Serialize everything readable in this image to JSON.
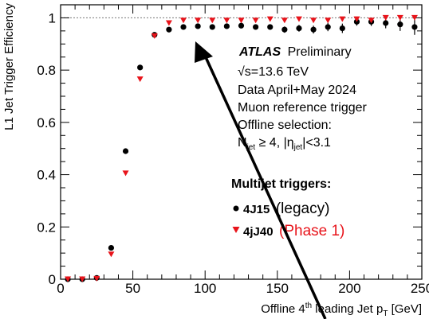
{
  "chart_data": {
    "type": "scatter",
    "xlabel": "Offline 4th leading Jet p_T [GeV]",
    "xlabel_parts": {
      "pre": "Offline 4",
      "sup": "th",
      "mid": " leading Jet p",
      "sub": "T",
      "post": " [GeV]"
    },
    "ylabel": "L1 Jet Trigger Efficiency",
    "xlim": [
      0,
      250
    ],
    "ylim": [
      0,
      1.05
    ],
    "xticks": [
      0,
      50,
      100,
      150,
      200,
      250
    ],
    "xtick_labels": [
      "0",
      "50",
      "100",
      "150",
      "200",
      "250"
    ],
    "yticks": [
      0,
      0.2,
      0.4,
      0.6,
      0.8,
      1
    ],
    "ytick_labels": [
      "0",
      "0.2",
      "0.4",
      "0.6",
      "0.8",
      "1"
    ],
    "reference_line": 1,
    "annotations": {
      "atlas": "ATLAS",
      "preliminary": "Preliminary",
      "energy": "√s=13.6 TeV",
      "data": "Data April+May 2024",
      "reference": "Muon reference trigger",
      "selection": "Offline selection:",
      "cut_n": "N",
      "cut_n_sub": "jet",
      "cut_rest": " ≥ 4, |η",
      "cut_eta_sub": "jet",
      "cut_end": "|<3.1"
    },
    "legend": {
      "title": "Multijet triggers:",
      "placement": "center-right"
    },
    "series": [
      {
        "name": "4J15",
        "note": "(legacy)",
        "color": "#000000",
        "marker": "circle",
        "x": [
          5,
          15,
          25,
          35,
          45,
          55,
          65,
          75,
          85,
          95,
          105,
          115,
          125,
          135,
          145,
          155,
          165,
          175,
          185,
          195,
          205,
          215,
          225,
          235,
          245
        ],
        "y": [
          0.0,
          0.0,
          0.005,
          0.12,
          0.49,
          0.81,
          0.935,
          0.955,
          0.965,
          0.968,
          0.965,
          0.968,
          0.97,
          0.965,
          0.965,
          0.955,
          0.96,
          0.955,
          0.965,
          0.96,
          0.985,
          0.985,
          0.98,
          0.975,
          0.965
        ],
        "yerr": [
          0,
          0,
          0.002,
          0.01,
          0.01,
          0.008,
          0.005,
          0.005,
          0.005,
          0.005,
          0.006,
          0.007,
          0.008,
          0.009,
          0.01,
          0.012,
          0.013,
          0.015,
          0.016,
          0.018,
          0.015,
          0.016,
          0.02,
          0.025,
          0.03
        ]
      },
      {
        "name": "4jJ40",
        "note": "(Phase 1)",
        "color": "#e8141b",
        "marker": "triangle-down",
        "x": [
          5,
          15,
          25,
          35,
          45,
          55,
          65,
          75,
          85,
          95,
          105,
          115,
          125,
          135,
          145,
          155,
          165,
          175,
          185,
          195,
          205,
          215,
          225,
          235,
          245
        ],
        "y": [
          0.0,
          0.0,
          0.002,
          0.095,
          0.405,
          0.765,
          0.93,
          0.98,
          0.99,
          0.99,
          0.99,
          0.99,
          0.99,
          0.99,
          0.995,
          0.99,
          0.995,
          0.99,
          0.99,
          0.995,
          0.995,
          0.99,
          1.0,
          1.0,
          1.0
        ],
        "yerr": [
          0,
          0,
          0,
          0,
          0,
          0,
          0,
          0,
          0,
          0,
          0,
          0,
          0,
          0,
          0,
          0,
          0,
          0,
          0,
          0,
          0,
          0,
          0,
          0,
          0
        ]
      }
    ]
  }
}
